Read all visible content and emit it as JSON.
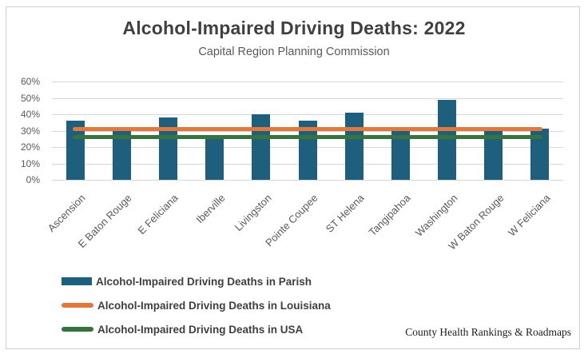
{
  "chart": {
    "source": "County Health Rankings & Roadmaps",
    "colors": {
      "bar": "#1F5F7E",
      "louisiana_line": "#E2793C",
      "usa_line": "#37733C",
      "gridline": "#D6D6D6",
      "axis_text": "#595959",
      "title_text": "#3F3F3F"
    },
    "legend": [
      {
        "label": "Alcohol-Impaired Driving Deaths in Parish",
        "swatch": "bar"
      },
      {
        "label": "Alcohol-Impaired Driving Deaths in Louisiana",
        "swatch": "line"
      },
      {
        "label": "Alcohol-Impaired Driving Deaths in USA",
        "swatch": "line"
      }
    ]
  },
  "chart_data": {
    "type": "bar",
    "title": "Alcohol-Impaired Driving Deaths: 2022",
    "subtitle": "Capital Region Planning Commission",
    "categories": [
      "Ascension",
      "E Baton Rouge",
      "E Feliciana",
      "Iberville",
      "Livingston",
      "Pointe Coupee",
      "ST Helena",
      "Tangipahoa",
      "Washington",
      "W Baton Rouge",
      "W Feliciana"
    ],
    "series": [
      {
        "name": "Alcohol-Impaired Driving Deaths in Parish",
        "type": "bar",
        "values": [
          36,
          31,
          38,
          25,
          40,
          36,
          41,
          30,
          49,
          30,
          31
        ]
      },
      {
        "name": "Alcohol-Impaired Driving Deaths in Louisiana",
        "type": "line",
        "value": 31
      },
      {
        "name": "Alcohol-Impaired Driving Deaths in USA",
        "type": "line",
        "value": 26
      }
    ],
    "ylim": [
      0,
      60
    ],
    "ytick_step": 10,
    "ytick_labels": [
      "0%",
      "10%",
      "20%",
      "30%",
      "40%",
      "50%",
      "60%"
    ],
    "grid": true,
    "legend_position": "bottom-left"
  }
}
